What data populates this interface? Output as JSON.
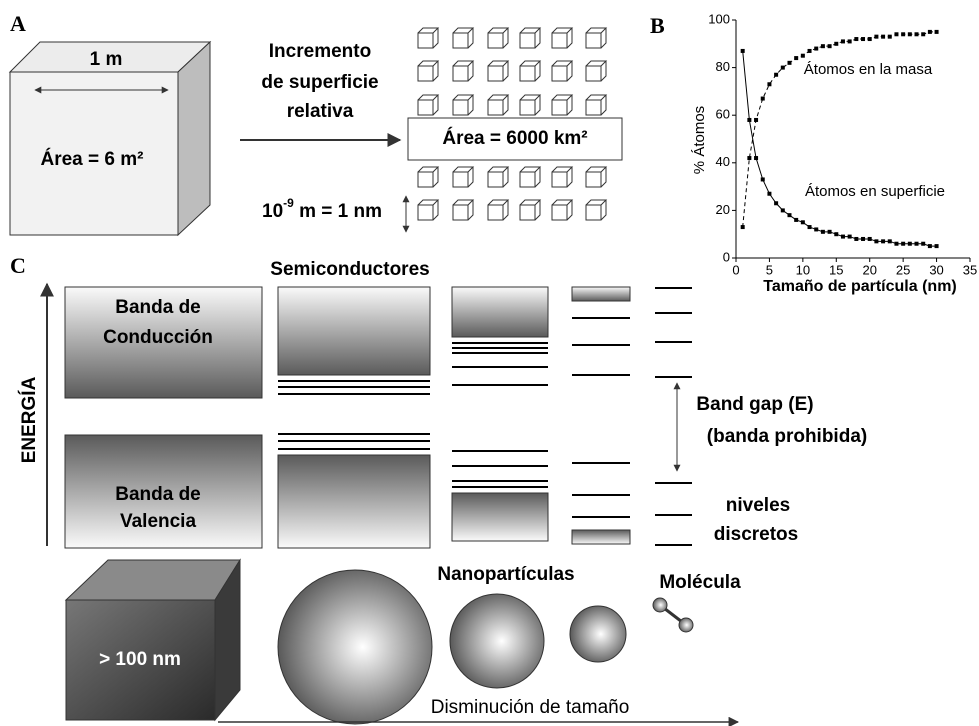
{
  "panel_a": {
    "label": "A",
    "side": "1 m",
    "area_big": "Área = 6 m²",
    "increment": [
      "Incremento",
      "de superficie",
      "relativa"
    ],
    "area_small": "Área = 6000 km²",
    "scale": {
      "base": "10",
      "exp": "-9",
      "rest": " m = 1 nm"
    }
  },
  "chart_data": {
    "type": "line",
    "label": "B",
    "x_label": "Tamaño de partícula (nm)",
    "y_label": "% Átomos",
    "x": [
      1,
      2,
      3,
      4,
      5,
      6,
      7,
      8,
      9,
      10,
      11,
      12,
      13,
      14,
      15,
      16,
      17,
      18,
      19,
      20,
      21,
      22,
      23,
      24,
      25,
      26,
      27,
      28,
      29,
      30
    ],
    "series": [
      {
        "name": "Átomos en la masa",
        "color": "#000000",
        "line_style": "dashed",
        "values": [
          13,
          42,
          58,
          67,
          73,
          77,
          80,
          82,
          84,
          85,
          87,
          88,
          89,
          89,
          90,
          91,
          91,
          92,
          92,
          92,
          93,
          93,
          93,
          94,
          94,
          94,
          94,
          94,
          95,
          95
        ]
      },
      {
        "name": "Átomos en superficie",
        "color": "#000000",
        "line_style": "solid",
        "values": [
          87,
          58,
          42,
          33,
          27,
          23,
          20,
          18,
          16,
          15,
          13,
          12,
          11,
          11,
          10,
          9,
          9,
          8,
          8,
          8,
          7,
          7,
          7,
          6,
          6,
          6,
          6,
          6,
          5,
          5
        ]
      }
    ],
    "xlim": [
      0,
      35
    ],
    "xticks": [
      0,
      5,
      10,
      15,
      20,
      25,
      30,
      35
    ],
    "ylim": [
      0,
      100
    ],
    "yticks": [
      0,
      20,
      40,
      60,
      80,
      100
    ],
    "grid": false
  },
  "panel_c": {
    "label": "C",
    "title": "Semiconductores",
    "energy": "ENERGÍA",
    "conduction": [
      "Banda de",
      "Conducción"
    ],
    "valence": [
      "Banda de",
      "Valencia"
    ],
    "band_gap": "Band gap (E)",
    "band_gap_note": "(banda prohibida)",
    "levels": [
      "niveles",
      "discretos"
    ],
    "bulk": "> 100 nm",
    "nano": "Nanopartículas",
    "molecule": "Molécula",
    "decrease": "Disminución de tamaño"
  }
}
